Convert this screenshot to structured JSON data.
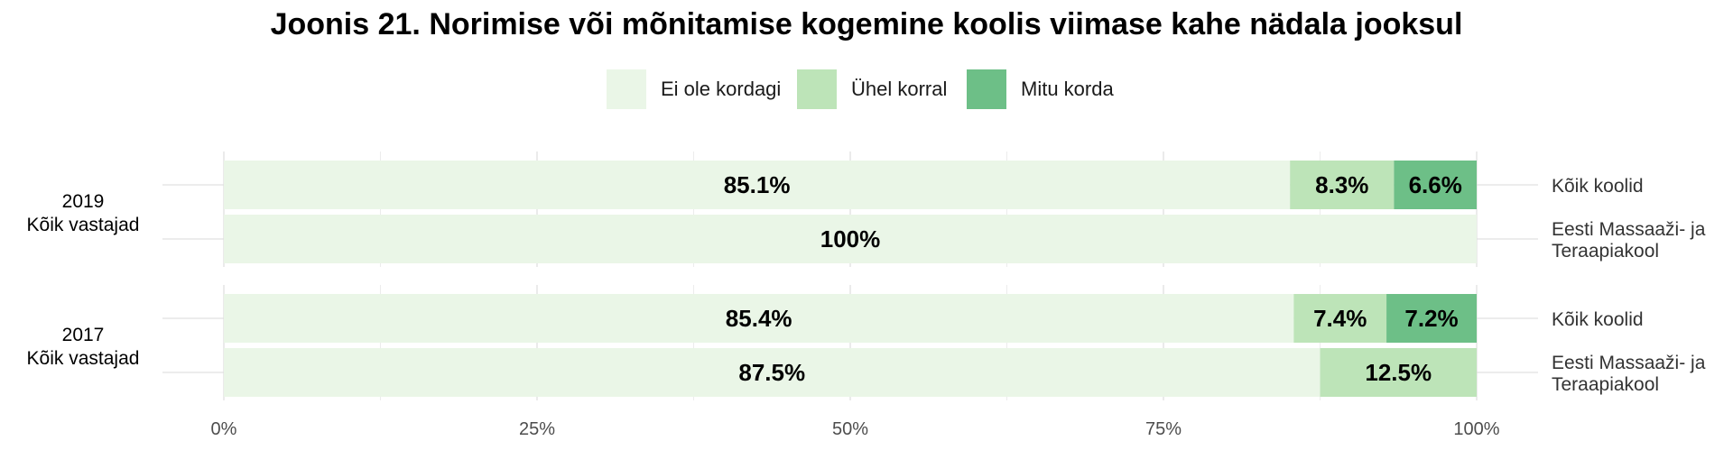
{
  "chart_data": {
    "type": "bar",
    "orientation": "horizontal",
    "stacked": true,
    "title": "Joonis 21. Norimise või mõnitamise kogemine koolis viimase kahe nädala jooksul",
    "legend_position": "top",
    "xlim": [
      0,
      100
    ],
    "x_ticks": [
      "0%",
      "25%",
      "50%",
      "75%",
      "100%"
    ],
    "grid": true,
    "series": [
      {
        "name": "Ei ole kordagi",
        "color": "#eaf6e7"
      },
      {
        "name": "Ühel korral",
        "color": "#bde4b8"
      },
      {
        "name": "Mitu korda",
        "color": "#6dbf87"
      }
    ],
    "facets": [
      {
        "label_line1": "2019",
        "label_line2": "Kõik vastajad",
        "rows": [
          {
            "category": [
              "Kõik koolid"
            ],
            "values": [
              85.1,
              8.3,
              6.6
            ],
            "labels": [
              "85.1%",
              "8.3%",
              "6.6%"
            ]
          },
          {
            "category": [
              "Eesti Massaaži- ja",
              "Teraapiakool"
            ],
            "values": [
              100,
              0,
              0
            ],
            "labels": [
              "100%",
              "",
              ""
            ]
          }
        ]
      },
      {
        "label_line1": "2017",
        "label_line2": "Kõik vastajad",
        "rows": [
          {
            "category": [
              "Kõik koolid"
            ],
            "values": [
              85.4,
              7.4,
              7.2
            ],
            "labels": [
              "85.4%",
              "7.4%",
              "7.2%"
            ]
          },
          {
            "category": [
              "Eesti Massaaži- ja",
              "Teraapiakool"
            ],
            "values": [
              87.5,
              12.5,
              0
            ],
            "labels": [
              "87.5%",
              "12.5%",
              ""
            ]
          }
        ]
      }
    ]
  }
}
